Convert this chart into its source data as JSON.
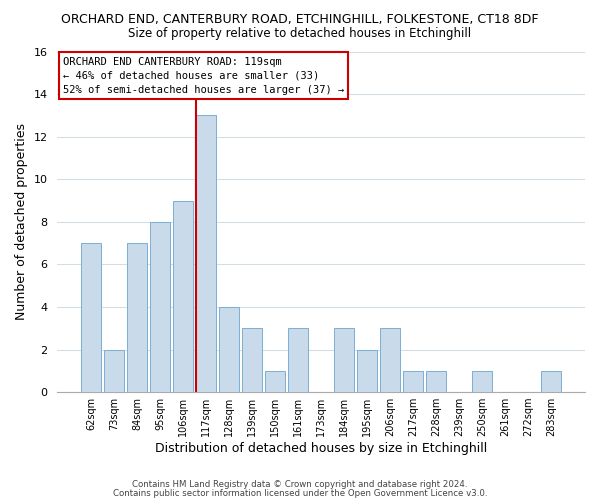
{
  "title1": "ORCHARD END, CANTERBURY ROAD, ETCHINGHILL, FOLKESTONE, CT18 8DF",
  "title2": "Size of property relative to detached houses in Etchinghill",
  "xlabel": "Distribution of detached houses by size in Etchinghill",
  "ylabel": "Number of detached properties",
  "bin_labels": [
    "62sqm",
    "73sqm",
    "84sqm",
    "95sqm",
    "106sqm",
    "117sqm",
    "128sqm",
    "139sqm",
    "150sqm",
    "161sqm",
    "173sqm",
    "184sqm",
    "195sqm",
    "206sqm",
    "217sqm",
    "228sqm",
    "239sqm",
    "250sqm",
    "261sqm",
    "272sqm",
    "283sqm"
  ],
  "bar_heights": [
    7,
    2,
    7,
    8,
    9,
    13,
    4,
    3,
    1,
    3,
    0,
    3,
    2,
    3,
    1,
    1,
    0,
    1,
    0,
    0,
    1
  ],
  "bar_color": "#c9daea",
  "bar_edge_color": "#7aafd4",
  "reference_line_color": "#cc0000",
  "ylim": [
    0,
    16
  ],
  "yticks": [
    0,
    2,
    4,
    6,
    8,
    10,
    12,
    14,
    16
  ],
  "annotation_lines": [
    "ORCHARD END CANTERBURY ROAD: 119sqm",
    "← 46% of detached houses are smaller (33)",
    "52% of semi-detached houses are larger (37) →"
  ],
  "footer1": "Contains HM Land Registry data © Crown copyright and database right 2024.",
  "footer2": "Contains public sector information licensed under the Open Government Licence v3.0.",
  "background_color": "#ffffff",
  "grid_color": "#d4dde6"
}
